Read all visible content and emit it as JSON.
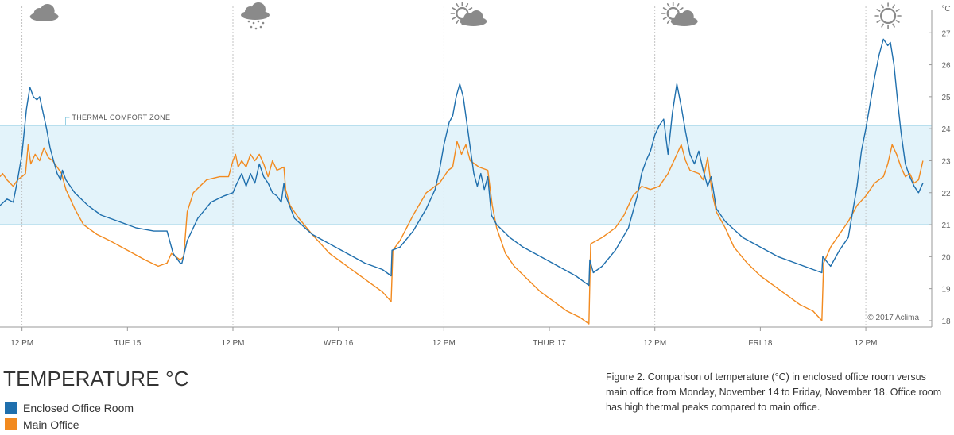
{
  "title": "TEMPERATURE °C",
  "caption": "Figure 2. Comparison of temperature (°C) in enclosed office room versus main office from Monday, November 14 to Friday, November 18. Office room has high thermal peaks compared to main office.",
  "credit": "© 2017 Aclima",
  "comfort_zone_label": "THERMAL COMFORT ZONE",
  "unit_label": "°C",
  "colors": {
    "enclosed": "#1f6fad",
    "main": "#f28a1f",
    "comfort_zone": "#e3f3fa",
    "comfort_edge": "#9fd3e6"
  },
  "weather_icons": [
    {
      "day": "Mon",
      "icon": "cloud-icon"
    },
    {
      "day": "Tue",
      "icon": "rain-cloud-icon"
    },
    {
      "day": "Wed",
      "icon": "partly-sunny-icon"
    },
    {
      "day": "Thu",
      "icon": "partly-sunny-icon"
    },
    {
      "day": "Fri",
      "icon": "sun-icon"
    }
  ],
  "chart_data": {
    "type": "line",
    "x_unit": "hours since Mon 00:00",
    "xlim": [
      9.5,
      115.5
    ],
    "ylim": [
      17.8,
      27.9
    ],
    "y_ticks": [
      18,
      19,
      20,
      21,
      22,
      23,
      24,
      25,
      26,
      27
    ],
    "x_ticks": [
      {
        "x": 12,
        "label": "12 PM"
      },
      {
        "x": 24,
        "label": "TUE 15"
      },
      {
        "x": 36,
        "label": "12 PM"
      },
      {
        "x": 48,
        "label": "WED 16"
      },
      {
        "x": 60,
        "label": "12 PM"
      },
      {
        "x": 72,
        "label": "THUR 17"
      },
      {
        "x": 84,
        "label": "12 PM"
      },
      {
        "x": 96,
        "label": "FRI 18"
      },
      {
        "x": 108,
        "label": "12 PM"
      }
    ],
    "comfort_zone": [
      21,
      24.1
    ],
    "series": [
      {
        "name": "Enclosed Office Room",
        "color": "#1f6fad",
        "points": [
          [
            9.5,
            21.6
          ],
          [
            10.3,
            21.8
          ],
          [
            11,
            21.7
          ],
          [
            11.5,
            22.4
          ],
          [
            12,
            23.2
          ],
          [
            12.5,
            24.6
          ],
          [
            12.9,
            25.3
          ],
          [
            13.3,
            25.0
          ],
          [
            13.7,
            24.9
          ],
          [
            14,
            25.0
          ],
          [
            14.4,
            24.5
          ],
          [
            14.8,
            24.0
          ],
          [
            15.2,
            23.4
          ],
          [
            15.6,
            23.0
          ],
          [
            16,
            22.6
          ],
          [
            16.4,
            22.4
          ],
          [
            16.6,
            22.7
          ],
          [
            17,
            22.4
          ],
          [
            18,
            22.0
          ],
          [
            19.5,
            21.6
          ],
          [
            21,
            21.3
          ],
          [
            23,
            21.1
          ],
          [
            25,
            20.9
          ],
          [
            27,
            20.8
          ],
          [
            28.5,
            20.8
          ],
          [
            29.2,
            20.1
          ],
          [
            30,
            19.8
          ],
          [
            30.2,
            19.8
          ],
          [
            30.8,
            20.5
          ],
          [
            32,
            21.2
          ],
          [
            33.5,
            21.7
          ],
          [
            35,
            21.9
          ],
          [
            36,
            22.0
          ],
          [
            36.3,
            22.2
          ],
          [
            37,
            22.6
          ],
          [
            37.5,
            22.2
          ],
          [
            38,
            22.6
          ],
          [
            38.5,
            22.3
          ],
          [
            39,
            22.9
          ],
          [
            39.5,
            22.5
          ],
          [
            40,
            22.3
          ],
          [
            40.5,
            22.0
          ],
          [
            41,
            21.9
          ],
          [
            41.5,
            21.7
          ],
          [
            41.8,
            22.3
          ],
          [
            42,
            21.9
          ],
          [
            43,
            21.2
          ],
          [
            45,
            20.7
          ],
          [
            47,
            20.4
          ],
          [
            49,
            20.1
          ],
          [
            51,
            19.8
          ],
          [
            53,
            19.6
          ],
          [
            54,
            19.4
          ],
          [
            54.1,
            20.2
          ],
          [
            55,
            20.3
          ],
          [
            56.5,
            20.8
          ],
          [
            58,
            21.5
          ],
          [
            59,
            22.1
          ],
          [
            59.5,
            22.7
          ],
          [
            60,
            23.5
          ],
          [
            60.6,
            24.2
          ],
          [
            61,
            24.4
          ],
          [
            61.4,
            25.0
          ],
          [
            61.8,
            25.4
          ],
          [
            62.2,
            25.0
          ],
          [
            62.6,
            24.2
          ],
          [
            63,
            23.4
          ],
          [
            63.4,
            22.6
          ],
          [
            63.8,
            22.2
          ],
          [
            64.2,
            22.6
          ],
          [
            64.6,
            22.1
          ],
          [
            65,
            22.5
          ],
          [
            65.4,
            21.3
          ],
          [
            66,
            21.0
          ],
          [
            67.5,
            20.6
          ],
          [
            69,
            20.3
          ],
          [
            71,
            20.0
          ],
          [
            73,
            19.7
          ],
          [
            75,
            19.4
          ],
          [
            76.5,
            19.1
          ],
          [
            76.6,
            19.9
          ],
          [
            77,
            19.5
          ],
          [
            78,
            19.7
          ],
          [
            79.5,
            20.2
          ],
          [
            81,
            20.9
          ],
          [
            82,
            21.9
          ],
          [
            82.5,
            22.6
          ],
          [
            83,
            23.0
          ],
          [
            83.5,
            23.3
          ],
          [
            84,
            23.8
          ],
          [
            84.5,
            24.1
          ],
          [
            85,
            24.3
          ],
          [
            85.5,
            23.2
          ],
          [
            86,
            24.5
          ],
          [
            86.5,
            25.4
          ],
          [
            87,
            24.7
          ],
          [
            87.5,
            23.9
          ],
          [
            88,
            23.2
          ],
          [
            88.5,
            22.9
          ],
          [
            89,
            23.3
          ],
          [
            89.5,
            22.7
          ],
          [
            90,
            22.2
          ],
          [
            90.4,
            22.5
          ],
          [
            91,
            21.5
          ],
          [
            92,
            21.1
          ],
          [
            94,
            20.6
          ],
          [
            96,
            20.3
          ],
          [
            98,
            20.0
          ],
          [
            100,
            19.8
          ],
          [
            102,
            19.6
          ],
          [
            103,
            19.5
          ],
          [
            103.1,
            20.0
          ],
          [
            104,
            19.7
          ],
          [
            105,
            20.2
          ],
          [
            106,
            20.6
          ],
          [
            106.5,
            21.4
          ],
          [
            107,
            22.2
          ],
          [
            107.5,
            23.3
          ],
          [
            108,
            24.0
          ],
          [
            108.5,
            24.8
          ],
          [
            109,
            25.6
          ],
          [
            109.5,
            26.3
          ],
          [
            110,
            26.8
          ],
          [
            110.5,
            26.6
          ],
          [
            110.8,
            26.7
          ],
          [
            111.2,
            26.0
          ],
          [
            111.6,
            24.9
          ],
          [
            112,
            23.9
          ],
          [
            112.5,
            22.9
          ],
          [
            113,
            22.5
          ],
          [
            113.5,
            22.2
          ],
          [
            114,
            22.0
          ],
          [
            114.5,
            22.3
          ]
        ]
      },
      {
        "name": "Main Office",
        "color": "#f28a1f",
        "points": [
          [
            9.5,
            22.5
          ],
          [
            9.8,
            22.6
          ],
          [
            10.3,
            22.4
          ],
          [
            11,
            22.2
          ],
          [
            11.5,
            22.4
          ],
          [
            12,
            22.5
          ],
          [
            12.4,
            22.6
          ],
          [
            12.7,
            23.5
          ],
          [
            13,
            22.9
          ],
          [
            13.5,
            23.2
          ],
          [
            14,
            23.0
          ],
          [
            14.5,
            23.4
          ],
          [
            15,
            23.1
          ],
          [
            15.5,
            23.0
          ],
          [
            16,
            22.8
          ],
          [
            16.5,
            22.6
          ],
          [
            17,
            22.1
          ],
          [
            18,
            21.5
          ],
          [
            19,
            21.0
          ],
          [
            20.5,
            20.7
          ],
          [
            22,
            20.5
          ],
          [
            24,
            20.2
          ],
          [
            26,
            19.9
          ],
          [
            27.5,
            19.7
          ],
          [
            28.5,
            19.8
          ],
          [
            29,
            20.1
          ],
          [
            30,
            19.9
          ],
          [
            30.4,
            20.0
          ],
          [
            30.8,
            21.4
          ],
          [
            31.5,
            22.0
          ],
          [
            33,
            22.4
          ],
          [
            34.5,
            22.5
          ],
          [
            35.5,
            22.5
          ],
          [
            36,
            23.0
          ],
          [
            36.3,
            23.2
          ],
          [
            36.6,
            22.8
          ],
          [
            37,
            23.0
          ],
          [
            37.5,
            22.8
          ],
          [
            38,
            23.2
          ],
          [
            38.5,
            23.0
          ],
          [
            39,
            23.2
          ],
          [
            39.5,
            22.9
          ],
          [
            40,
            22.5
          ],
          [
            40.5,
            23.0
          ],
          [
            41,
            22.7
          ],
          [
            41.8,
            22.8
          ],
          [
            42,
            22.1
          ],
          [
            42.5,
            21.6
          ],
          [
            43.5,
            21.2
          ],
          [
            45,
            20.7
          ],
          [
            47,
            20.1
          ],
          [
            49,
            19.7
          ],
          [
            51,
            19.3
          ],
          [
            53,
            18.9
          ],
          [
            54,
            18.6
          ],
          [
            54.2,
            20.2
          ],
          [
            55,
            20.5
          ],
          [
            56.5,
            21.3
          ],
          [
            58,
            22.0
          ],
          [
            59.5,
            22.3
          ],
          [
            60.5,
            22.7
          ],
          [
            61,
            22.8
          ],
          [
            61.5,
            23.6
          ],
          [
            62,
            23.2
          ],
          [
            62.5,
            23.5
          ],
          [
            63,
            23.0
          ],
          [
            64,
            22.8
          ],
          [
            65,
            22.7
          ],
          [
            65.5,
            21.6
          ],
          [
            66,
            20.9
          ],
          [
            67,
            20.1
          ],
          [
            68,
            19.7
          ],
          [
            69.5,
            19.3
          ],
          [
            71,
            18.9
          ],
          [
            72.5,
            18.6
          ],
          [
            74,
            18.3
          ],
          [
            75.5,
            18.1
          ],
          [
            76.5,
            17.9
          ],
          [
            76.7,
            20.4
          ],
          [
            78,
            20.6
          ],
          [
            79.5,
            20.9
          ],
          [
            80.5,
            21.3
          ],
          [
            81.5,
            21.9
          ],
          [
            82.5,
            22.2
          ],
          [
            83.5,
            22.1
          ],
          [
            84.5,
            22.2
          ],
          [
            85.5,
            22.6
          ],
          [
            86.5,
            23.2
          ],
          [
            87,
            23.5
          ],
          [
            87.5,
            23.0
          ],
          [
            88,
            22.7
          ],
          [
            89,
            22.6
          ],
          [
            89.5,
            22.4
          ],
          [
            90,
            23.1
          ],
          [
            90.5,
            22.0
          ],
          [
            91,
            21.4
          ],
          [
            92,
            20.9
          ],
          [
            93,
            20.3
          ],
          [
            94.5,
            19.8
          ],
          [
            96,
            19.4
          ],
          [
            97.5,
            19.1
          ],
          [
            99,
            18.8
          ],
          [
            100.5,
            18.5
          ],
          [
            102,
            18.3
          ],
          [
            103,
            18.0
          ],
          [
            103.2,
            19.8
          ],
          [
            104,
            20.3
          ],
          [
            105,
            20.7
          ],
          [
            106,
            21.1
          ],
          [
            107,
            21.6
          ],
          [
            108,
            21.9
          ],
          [
            109,
            22.3
          ],
          [
            110,
            22.5
          ],
          [
            110.5,
            22.9
          ],
          [
            111,
            23.5
          ],
          [
            111.5,
            23.2
          ],
          [
            112,
            22.8
          ],
          [
            112.5,
            22.5
          ],
          [
            113,
            22.6
          ],
          [
            113.5,
            22.3
          ],
          [
            114,
            22.4
          ],
          [
            114.5,
            23.0
          ]
        ]
      }
    ]
  }
}
